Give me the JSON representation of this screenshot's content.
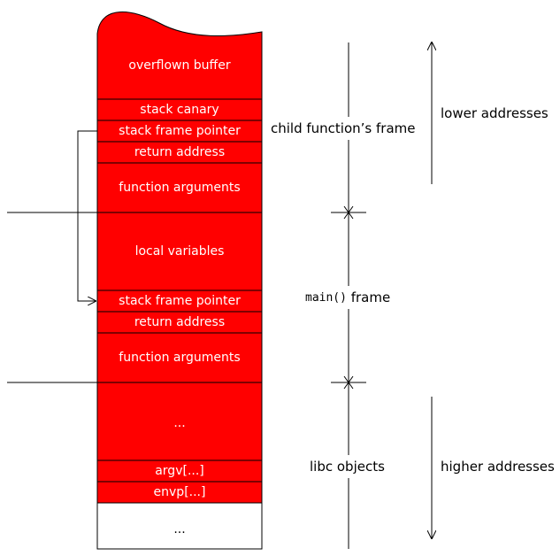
{
  "colors": {
    "frame_fill": "#ff0000",
    "empty_fill": "#ffffff",
    "line": "#000000"
  },
  "stack": {
    "overflown_buffer": "overflown buffer",
    "stack_canary": "stack canary",
    "child_stack_frame_pointer": "stack frame pointer",
    "child_return_address": "return address",
    "child_function_arguments": "function arguments",
    "local_variables": "local variables",
    "main_stack_frame_pointer": "stack frame pointer",
    "main_return_address": "return address",
    "main_function_arguments": "function arguments",
    "ellipsis_red": "...",
    "argv": "argv[...]",
    "envp": "envp[...]",
    "ellipsis_white": "..."
  },
  "labels": {
    "child_frame": "child function’s frame",
    "main_code": "main()",
    "main_suffix": " frame",
    "libc_objects": "libc objects",
    "lower_addresses": "lower addresses",
    "higher_addresses": "higher addresses"
  }
}
